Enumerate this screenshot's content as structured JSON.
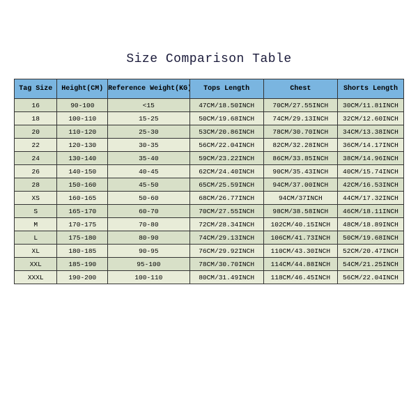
{
  "title": "Size Comparison Table",
  "columns": [
    "Tag Size",
    "Height(CM)",
    "Reference Weight(KG)",
    "Tops Length",
    "Chest",
    "Shorts Length"
  ],
  "col_widths": [
    "11%",
    "13%",
    "21%",
    "19%",
    "19%",
    "17%"
  ],
  "header_bg": "#7ab5e0",
  "row_bg_odd": "#d8e0c8",
  "row_bg_even": "#e8ecd8",
  "border_color": "#333",
  "title_color": "#1a1a3a",
  "title_fontsize": 18,
  "cell_fontsize": 9.5,
  "header_fontsize": 10,
  "font_family": "Courier New, monospace",
  "rows": [
    [
      "16",
      "90-100",
      "<15",
      "47CM/18.50INCH",
      "70CM/27.55INCH",
      "30CM/11.81INCH"
    ],
    [
      "18",
      "100-110",
      "15-25",
      "50CM/19.68INCH",
      "74CM/29.13INCH",
      "32CM/12.60INCH"
    ],
    [
      "20",
      "110-120",
      "25-30",
      "53CM/20.86INCH",
      "78CM/30.70INCH",
      "34CM/13.38INCH"
    ],
    [
      "22",
      "120-130",
      "30-35",
      "56CM/22.04INCH",
      "82CM/32.28INCH",
      "36CM/14.17INCH"
    ],
    [
      "24",
      "130-140",
      "35-40",
      "59CM/23.22INCH",
      "86CM/33.85INCH",
      "38CM/14.96INCH"
    ],
    [
      "26",
      "140-150",
      "40-45",
      "62CM/24.40INCH",
      "90CM/35.43INCH",
      "40CM/15.74INCH"
    ],
    [
      "28",
      "150-160",
      "45-50",
      "65CM/25.59INCH",
      "94CM/37.00INCH",
      "42CM/16.53INCH"
    ],
    [
      "XS",
      "160-165",
      "50-60",
      "68CM/26.77INCH",
      "94CM/37INCH",
      "44CM/17.32INCH"
    ],
    [
      "S",
      "165-170",
      "60-70",
      "70CM/27.55INCH",
      "98CM/38.58INCH",
      "46CM/18.11INCH"
    ],
    [
      "M",
      "170-175",
      "70-80",
      "72CM/28.34INCH",
      "102CM/40.15INCH",
      "48CM/18.89INCH"
    ],
    [
      "L",
      "175-180",
      "80-90",
      "74CM/29.13INCH",
      "106CM/41.73INCH",
      "50CM/19.68INCH"
    ],
    [
      "XL",
      "180-185",
      "90-95",
      "76CM/29.92INCH",
      "110CM/43.30INCH",
      "52CM/20.47INCH"
    ],
    [
      "XXL",
      "185-190",
      "95-100",
      "78CM/30.70INCH",
      "114CM/44.88INCH",
      "54CM/21.25INCH"
    ],
    [
      "XXXL",
      "190-200",
      "100-110",
      "80CM/31.49INCH",
      "118CM/46.45INCH",
      "56CM/22.04INCH"
    ]
  ]
}
